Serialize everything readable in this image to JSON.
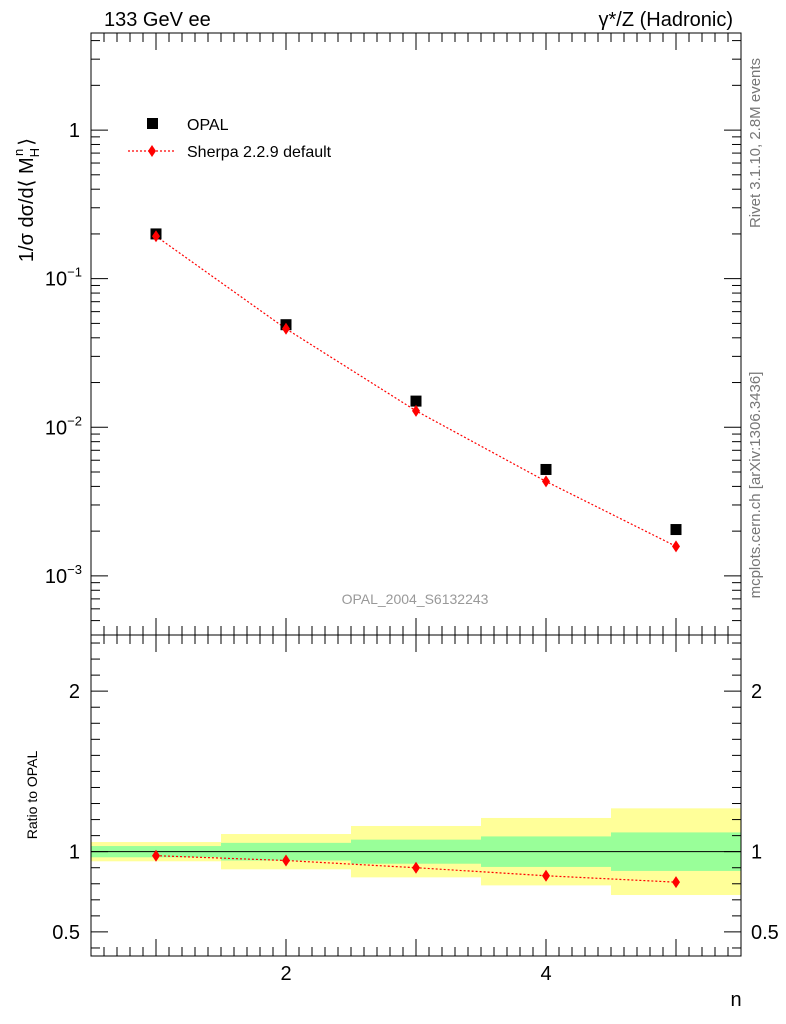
{
  "header": {
    "title_left": "133 GeV ee",
    "title_right": "γ*/Z (Hadronic)"
  },
  "side": {
    "rivet": "Rivet 3.1.10,  2.8M events",
    "mcplots": "mcplots.cern.ch [arXiv:1306.3436]"
  },
  "watermark": "OPAL_2004_S6132243",
  "chart_data": [
    {
      "type": "scatter",
      "ylabel": "1/σ dσ/d⟨ M_H^n ⟩",
      "yscale": "log",
      "xlim": [
        0.5,
        5.5
      ],
      "ylim": [
        0.0004,
        4.5
      ],
      "x": [
        1,
        2,
        3,
        4,
        5
      ],
      "yticks": [
        {
          "value": 1,
          "label": "1"
        },
        {
          "value": 0.1,
          "label": "10",
          "exp": "−1"
        },
        {
          "value": 0.01,
          "label": "10",
          "exp": "−2"
        },
        {
          "value": 0.001,
          "label": "10",
          "exp": "−3"
        }
      ],
      "legend": {
        "placement": "top-left"
      },
      "series": [
        {
          "name": "OPAL",
          "values": [
            0.2,
            0.049,
            0.015,
            0.0052,
            0.00205
          ],
          "color": "#000000",
          "marker": "square"
        },
        {
          "name": "Sherpa 2.2.9 default",
          "values": [
            0.193,
            0.046,
            0.0129,
            0.00432,
            0.00158
          ],
          "color": "#ff0000",
          "marker": "diamond"
        }
      ]
    },
    {
      "type": "scatter",
      "ylabel": "Ratio to OPAL",
      "xlabel": "n",
      "xlim": [
        0.5,
        5.5
      ],
      "ylim": [
        0.35,
        2.35
      ],
      "x": [
        1,
        2,
        3,
        4,
        5
      ],
      "xticks": [
        {
          "value": 2,
          "label": "2"
        },
        {
          "value": 4,
          "label": "4"
        }
      ],
      "yticks": [
        {
          "value": 0.5,
          "label": "0.5"
        },
        {
          "value": 1,
          "label": "1"
        },
        {
          "value": 2,
          "label": "2"
        }
      ],
      "reference_line": 1,
      "bands": {
        "stat_color": "#99ff99",
        "total_color": "#ffff99",
        "stat_low": [
          0.965,
          0.945,
          0.925,
          0.905,
          0.88
        ],
        "stat_high": [
          1.035,
          1.055,
          1.075,
          1.095,
          1.12
        ],
        "total_low": [
          0.94,
          0.89,
          0.84,
          0.79,
          0.73
        ],
        "total_high": [
          1.06,
          1.11,
          1.16,
          1.21,
          1.27
        ]
      },
      "series": [
        {
          "name": "Sherpa 2.2.9 default",
          "values": [
            0.975,
            0.945,
            0.9,
            0.85,
            0.81
          ],
          "color": "#ff0000",
          "marker": "diamond"
        }
      ]
    }
  ]
}
